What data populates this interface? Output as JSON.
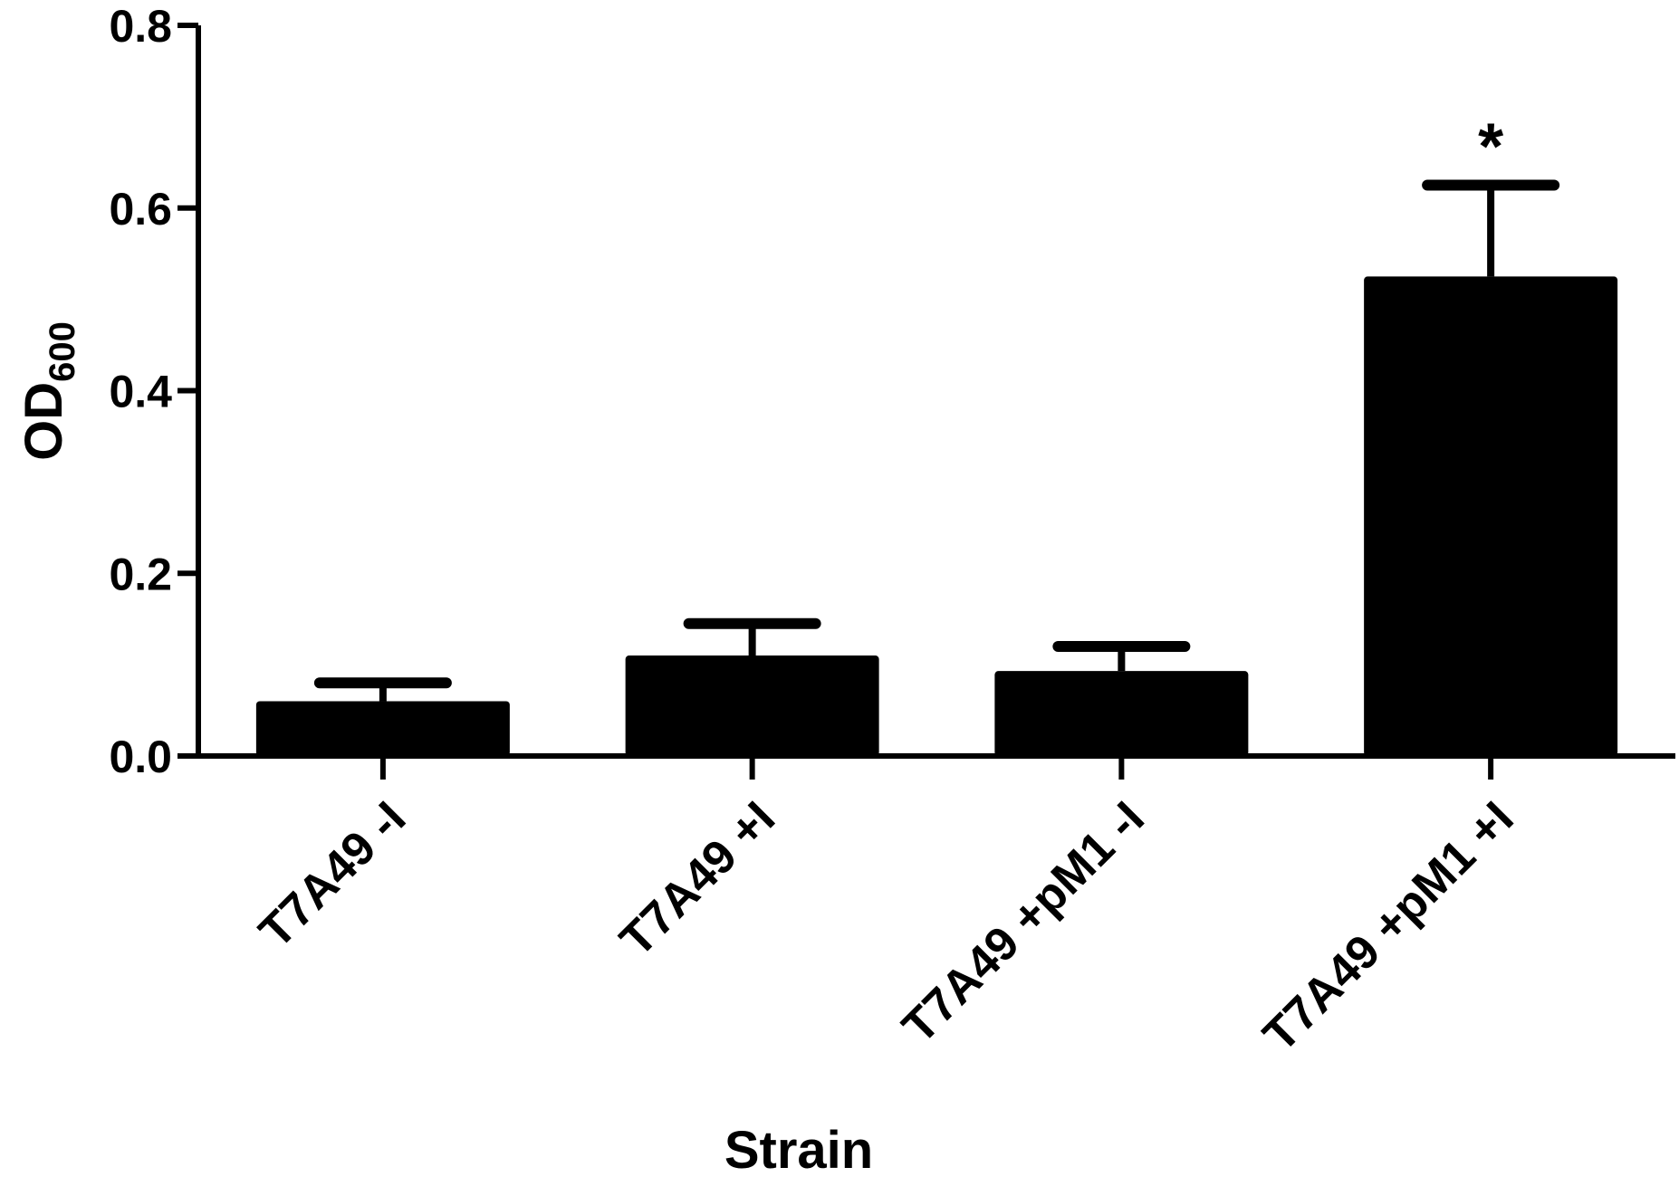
{
  "chart_data": {
    "type": "bar",
    "xlabel": "Strain",
    "ylabel_main": "OD",
    "ylabel_sub": "600",
    "ylim": [
      0,
      0.8
    ],
    "yticks": [
      "0.0",
      "0.2",
      "0.4",
      "0.6",
      "0.8"
    ],
    "categories": [
      "T7A49 -I",
      "T7A49 +I",
      "T7A49 +pM1 -I",
      "T7A49 +pM1 +I"
    ],
    "values": [
      0.06,
      0.11,
      0.093,
      0.525
    ],
    "errors": [
      0.02,
      0.035,
      0.027,
      0.1
    ],
    "annotations": [
      "",
      "",
      "",
      "*"
    ],
    "bar_color": "#000000",
    "grid": false,
    "legend": "none"
  }
}
